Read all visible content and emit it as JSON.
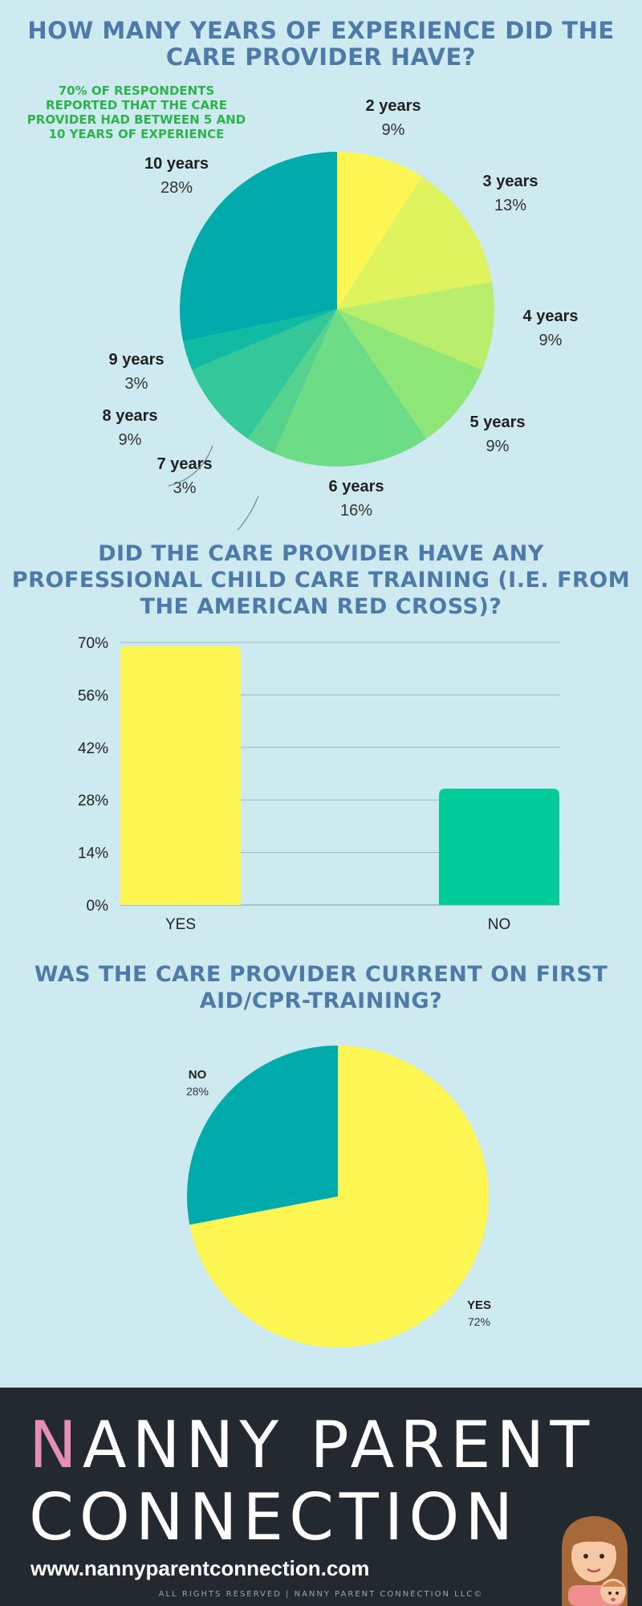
{
  "section1": {
    "heading": "HOW MANY YEARS OF EXPERIENCE DID THE CARE PROVIDER HAVE?",
    "callout": "70% OF RESPONDENTS REPORTED THAT THE CARE PROVIDER HAD BETWEEN 5 AND 10 YEARS OF EXPERIENCE"
  },
  "section2": {
    "heading": "DID THE CARE PROVIDER HAVE ANY PROFESSIONAL CHILD CARE TRAINING (I.E. FROM THE AMERICAN RED CROSS)?"
  },
  "section3": {
    "heading": "WAS THE CARE PROVIDER CURRENT ON FIRST AID/CPR-TRAINING?"
  },
  "chart_data": [
    {
      "type": "pie",
      "title": "HOW MANY YEARS OF EXPERIENCE DID THE CARE PROVIDER HAVE?",
      "categories": [
        "2 years",
        "3 years",
        "4 years",
        "5 years",
        "6 years",
        "7 years",
        "8 years",
        "9 years",
        "10 years"
      ],
      "values": [
        9,
        13,
        9,
        9,
        16,
        3,
        9,
        3,
        28
      ],
      "labels": [
        "9%",
        "13%",
        "9%",
        "9%",
        "16%",
        "3%",
        "9%",
        "3%",
        "28%"
      ],
      "colors": [
        "#fdf653",
        "#def35d",
        "#b8ee6b",
        "#8fe678",
        "#6ddc86",
        "#55d28e",
        "#33c799",
        "#11bba3",
        "#02abab"
      ]
    },
    {
      "type": "bar",
      "title": "DID THE CARE PROVIDER HAVE ANY PROFESSIONAL CHILD CARE TRAINING (I.E. FROM THE AMERICAN RED CROSS)?",
      "categories": [
        "YES",
        "NO"
      ],
      "values": [
        69,
        31
      ],
      "ylim": [
        0,
        70
      ],
      "yticks": [
        "0%",
        "14%",
        "28%",
        "42%",
        "56%",
        "70%"
      ],
      "grid": true,
      "colors": [
        "#fdf653",
        "#02cd9a"
      ]
    },
    {
      "type": "pie",
      "title": "WAS THE CARE PROVIDER CURRENT ON FIRST AID/CPR-TRAINING?",
      "categories": [
        "YES",
        "NO"
      ],
      "values": [
        72,
        28
      ],
      "labels": [
        "72%",
        "28%"
      ],
      "colors": [
        "#fdf653",
        "#02abab"
      ]
    }
  ],
  "footer": {
    "brand_initial": "N",
    "brand_line1_rest": "ANNY PARENT",
    "brand_line2": "CONNECTION",
    "url": "www.nannyparentconnection.com",
    "rights": "ALL RIGHTS RESERVED | NANNY PARENT CONNECTION LLC©",
    "brand_colors": {
      "background": "#222a30",
      "accent": "#e58fb4"
    }
  }
}
